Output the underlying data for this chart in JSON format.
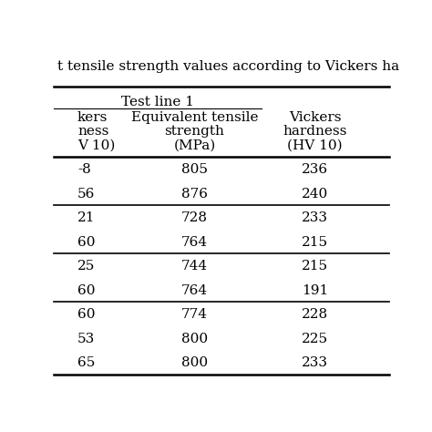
{
  "title": "t tensile strength values according to Vickers ha",
  "subheader": "Test line 1",
  "col1_header": [
    "kers",
    "ness",
    "V 10)"
  ],
  "col2_header": [
    "Equivalent tensile",
    "strength",
    "(MPa)"
  ],
  "col3_header": [
    "Vickers",
    "hardness",
    "(HV 10)"
  ],
  "rows": [
    [
      "-8",
      "805",
      "236"
    ],
    [
      "56",
      "876",
      "240"
    ],
    [
      "21",
      "728",
      "233"
    ],
    [
      "60",
      "764",
      "215"
    ],
    [
      "25",
      "744",
      "215"
    ],
    [
      "60",
      "764",
      "191"
    ],
    [
      "60",
      "774",
      "228"
    ],
    [
      "53",
      "800",
      "225"
    ],
    [
      "65",
      "800",
      "233"
    ]
  ],
  "group_dividers": [
    2,
    4,
    6
  ],
  "background_color": "#ffffff",
  "text_color": "#000000",
  "font_size": 11,
  "header_font_size": 11
}
